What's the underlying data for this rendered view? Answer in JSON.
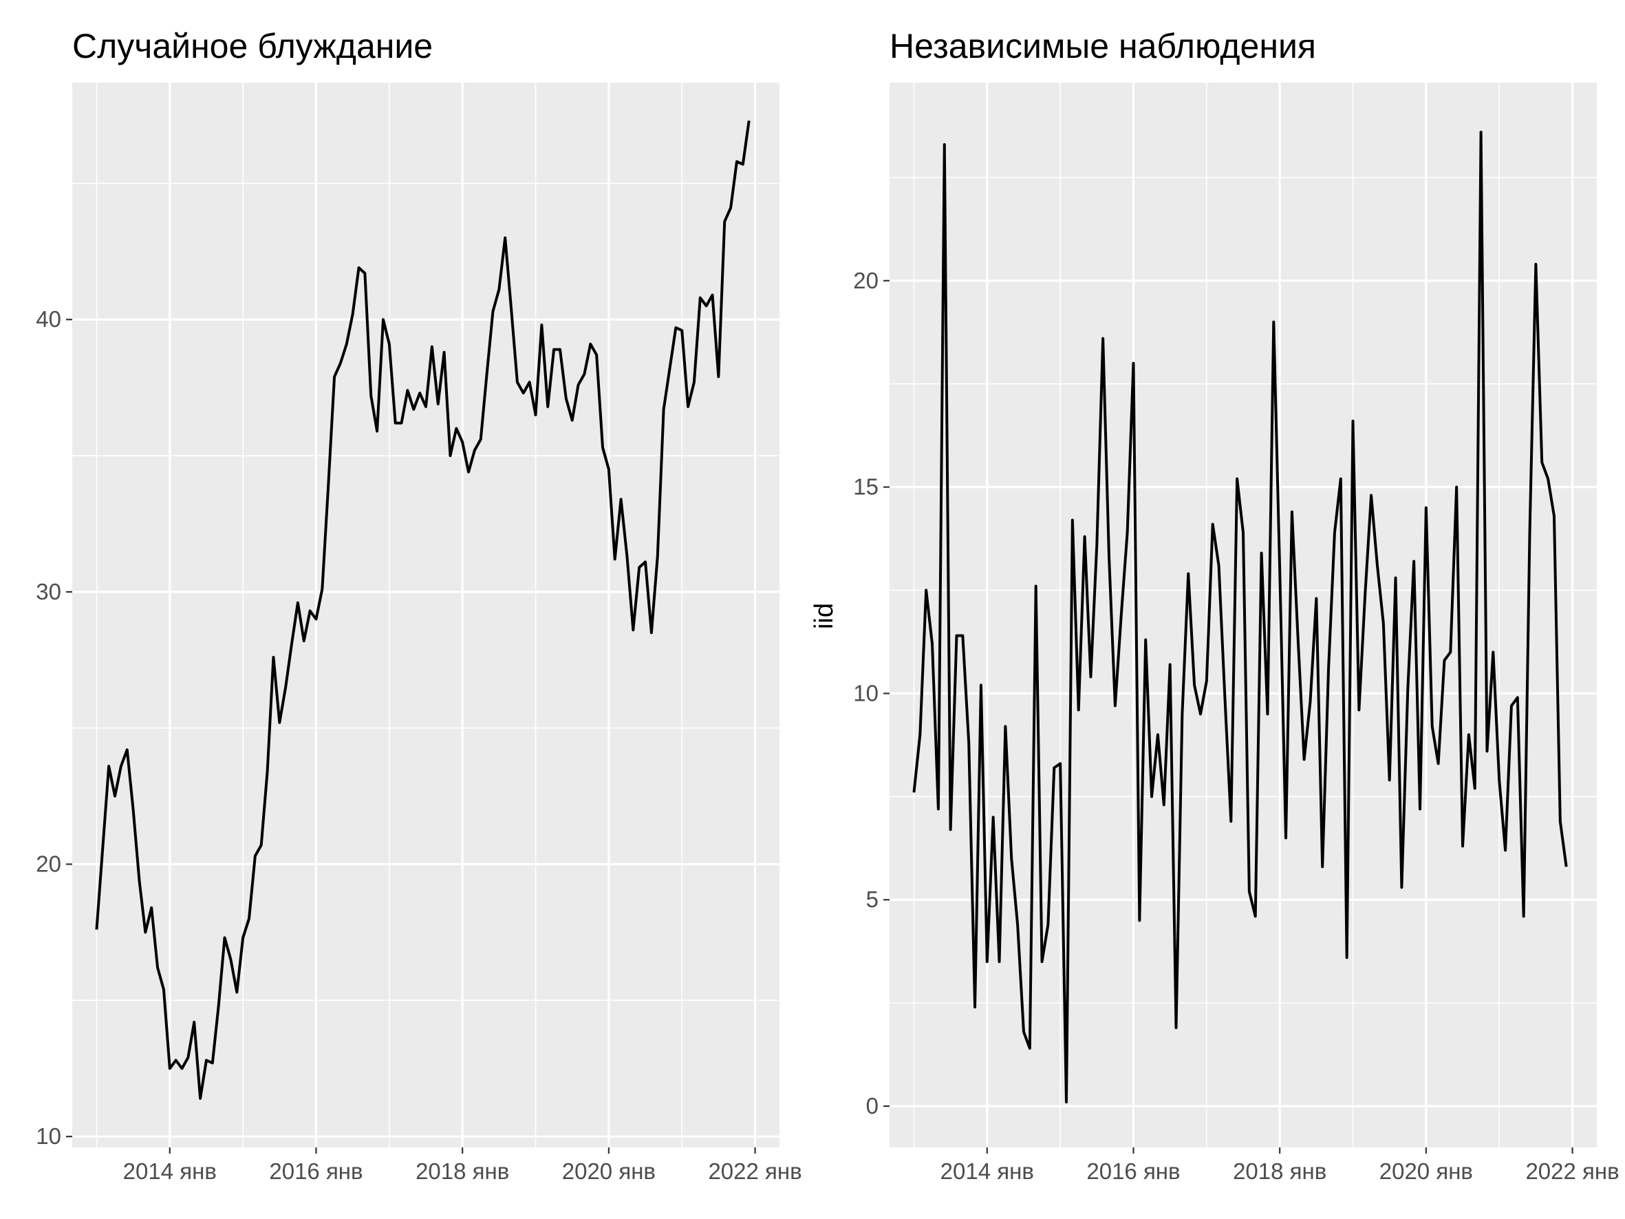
{
  "chart_data": [
    {
      "type": "line",
      "title": "Случайное блуждание",
      "xlabel": "",
      "ylabel": "",
      "x_start": "2013-01",
      "x_frequency": "monthly",
      "x_ticks": [
        "2014 янв",
        "2016 янв",
        "2018 янв",
        "2020 янв",
        "2022 янв"
      ],
      "y_ticks": [
        10,
        20,
        30,
        40
      ],
      "xlim": [
        "2012-09",
        "2022-05"
      ],
      "ylim": [
        9.6,
        48.7
      ],
      "grid": true,
      "legend": "none",
      "line_color": "#000000",
      "background": "#ebebeb",
      "values": [
        17.6,
        20.6,
        23.6,
        22.5,
        23.6,
        24.2,
        22.0,
        19.4,
        17.5,
        18.4,
        16.2,
        15.4,
        12.5,
        12.8,
        12.5,
        12.9,
        14.2,
        11.4,
        12.8,
        12.7,
        14.8,
        17.3,
        16.5,
        15.3,
        17.3,
        18.0,
        20.3,
        20.7,
        23.4,
        27.6,
        25.2,
        26.5,
        28.1,
        29.6,
        28.2,
        29.3,
        29.0,
        30.1,
        33.9,
        37.9,
        38.4,
        39.1,
        40.2,
        41.9,
        41.7,
        37.2,
        35.9,
        40.0,
        39.1,
        36.2,
        36.2,
        37.4,
        36.7,
        37.3,
        36.8,
        39.0,
        36.9,
        38.8,
        35.0,
        36.0,
        35.5,
        34.4,
        35.2,
        35.6,
        38.0,
        40.3,
        41.1,
        43.0,
        40.4,
        37.7,
        37.3,
        37.7,
        36.5,
        39.8,
        36.8,
        38.9,
        38.9,
        37.1,
        36.3,
        37.6,
        38.0,
        39.1,
        38.7,
        35.3,
        34.5,
        31.2,
        33.4,
        31.3,
        28.6,
        30.9,
        31.1,
        28.5,
        31.3,
        36.7,
        38.2,
        39.7,
        39.6,
        36.8,
        37.7,
        40.8,
        40.5,
        40.9,
        37.9,
        43.6,
        44.1,
        45.8,
        45.7,
        47.3
      ]
    },
    {
      "type": "line",
      "title": "Независимые наблюдения",
      "xlabel": "",
      "ylabel": "iid",
      "x_start": "2013-01",
      "x_frequency": "monthly",
      "x_ticks": [
        "2014 янв",
        "2016 янв",
        "2018 янв",
        "2020 янв",
        "2022 янв"
      ],
      "y_ticks": [
        0,
        5,
        10,
        15,
        20
      ],
      "xlim": [
        "2012-09",
        "2022-05"
      ],
      "ylim": [
        -1.0,
        24.8
      ],
      "grid": true,
      "legend": "none",
      "line_color": "#000000",
      "background": "#ebebeb",
      "values": [
        7.6,
        9.0,
        12.5,
        11.2,
        7.2,
        23.3,
        6.7,
        11.4,
        11.4,
        8.8,
        2.4,
        10.2,
        3.5,
        7.0,
        3.5,
        9.2,
        6.0,
        4.4,
        1.8,
        1.4,
        12.6,
        3.5,
        4.4,
        8.2,
        8.3,
        0.1,
        14.2,
        9.6,
        13.8,
        10.4,
        13.6,
        18.6,
        13.3,
        9.7,
        11.9,
        13.9,
        18.0,
        4.5,
        11.3,
        7.5,
        9.0,
        7.3,
        10.7,
        1.9,
        9.5,
        12.9,
        10.2,
        9.5,
        10.3,
        14.1,
        13.1,
        9.9,
        6.9,
        15.2,
        13.9,
        5.2,
        4.6,
        13.4,
        9.5,
        19.0,
        13.0,
        6.5,
        14.4,
        11.3,
        8.4,
        9.8,
        12.3,
        5.8,
        10.6,
        13.9,
        15.2,
        3.6,
        16.6,
        9.6,
        12.4,
        14.8,
        13.1,
        11.7,
        7.9,
        12.8,
        5.3,
        10.1,
        13.2,
        7.2,
        14.5,
        9.2,
        8.3,
        10.8,
        11.0,
        15.0,
        6.3,
        9.0,
        7.7,
        23.6,
        8.6,
        11.0,
        7.9,
        6.2,
        9.7,
        9.9,
        4.6,
        13.9,
        20.4,
        15.6,
        15.2,
        14.3,
        6.9,
        5.8
      ]
    }
  ]
}
